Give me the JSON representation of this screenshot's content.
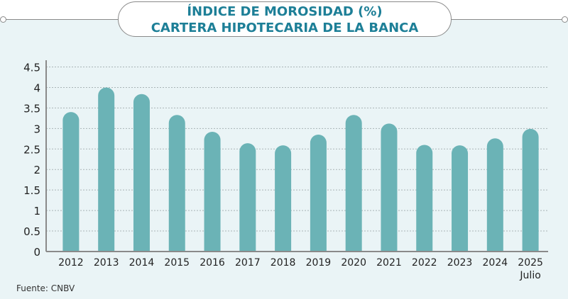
{
  "chart_data": {
    "type": "bar",
    "title_line1": "ÍNDICE DE MOROSIDAD (%)",
    "title_line2": "CARTERA HIPOTECARIA DE LA BANCA",
    "categories": [
      "2012",
      "2013",
      "2014",
      "2015",
      "2016",
      "2017",
      "2018",
      "2019",
      "2020",
      "2021",
      "2022",
      "2023",
      "2024",
      "2025"
    ],
    "last_category_note": "Julio",
    "values": [
      3.4,
      4.0,
      3.84,
      3.33,
      2.92,
      2.64,
      2.59,
      2.85,
      3.33,
      3.12,
      2.6,
      2.59,
      2.76,
      2.99
    ],
    "yticks": [
      "0",
      "0.5",
      "1",
      "1.5",
      "2",
      "2.5",
      "3",
      "3.5",
      "4",
      "4.5"
    ],
    "ylim": [
      0,
      4.5
    ],
    "grid": true,
    "bar_color": "#6bb3b6",
    "title_color": "#1d7f97"
  },
  "source": "Fuente: CNBV"
}
